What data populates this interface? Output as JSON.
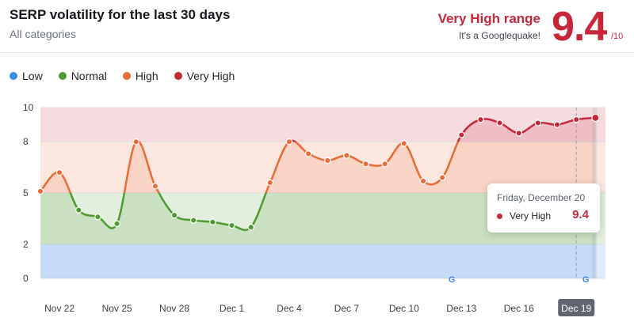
{
  "header": {
    "title": "SERP volatility for the last 30 days",
    "subtitle": "All categories",
    "range_title": "Very High range",
    "range_sub": "It's a Googlequake!",
    "score": "9.4",
    "score_den": "/10"
  },
  "legend": [
    {
      "label": "Low",
      "color": "#3b8be8"
    },
    {
      "label": "Normal",
      "color": "#4d9a2e"
    },
    {
      "label": "High",
      "color": "#ea6b35"
    },
    {
      "label": "Very High",
      "color": "#c8273a"
    }
  ],
  "tooltip": {
    "date": "Friday, December 20",
    "label": "Very High",
    "value": "9.4"
  },
  "chart_data": {
    "type": "area",
    "title": "SERP volatility for the last 30 days",
    "xlabel": "",
    "ylabel": "",
    "ylim": [
      0,
      10
    ],
    "y_ticks": [
      0,
      2,
      5,
      8,
      10
    ],
    "x_ticks": [
      "Nov 22",
      "Nov 25",
      "Nov 28",
      "Dec 1",
      "Dec 4",
      "Dec 7",
      "Dec 10",
      "Dec 13",
      "Dec 16",
      "Dec 19"
    ],
    "x": [
      "Nov 21",
      "Nov 22",
      "Nov 23",
      "Nov 24",
      "Nov 25",
      "Nov 26",
      "Nov 27",
      "Nov 28",
      "Nov 29",
      "Nov 30",
      "Dec 1",
      "Dec 2",
      "Dec 3",
      "Dec 4",
      "Dec 5",
      "Dec 6",
      "Dec 7",
      "Dec 8",
      "Dec 9",
      "Dec 10",
      "Dec 11",
      "Dec 12",
      "Dec 13",
      "Dec 14",
      "Dec 15",
      "Dec 16",
      "Dec 17",
      "Dec 18",
      "Dec 19",
      "Dec 20"
    ],
    "values": [
      5.1,
      6.2,
      4.0,
      3.6,
      3.2,
      8.0,
      5.4,
      3.7,
      3.4,
      3.3,
      3.1,
      3.0,
      5.6,
      8.0,
      7.3,
      6.9,
      7.2,
      6.7,
      6.7,
      7.9,
      5.7,
      5.9,
      8.4,
      9.3,
      9.1,
      8.5,
      9.1,
      9.0,
      9.3,
      9.4
    ],
    "bands": [
      {
        "name": "Low",
        "range": [
          0,
          2
        ],
        "color": "#3b8be8"
      },
      {
        "name": "Normal",
        "range": [
          2,
          5
        ],
        "color": "#4d9a2e"
      },
      {
        "name": "High",
        "range": [
          5,
          8
        ],
        "color": "#ea6b35"
      },
      {
        "name": "Very High",
        "range": [
          8,
          10
        ],
        "color": "#c8273a"
      }
    ],
    "google_update_markers": [
      "Dec 12",
      "Dec 19"
    ],
    "highlighted": "Dec 19",
    "grid": true
  }
}
